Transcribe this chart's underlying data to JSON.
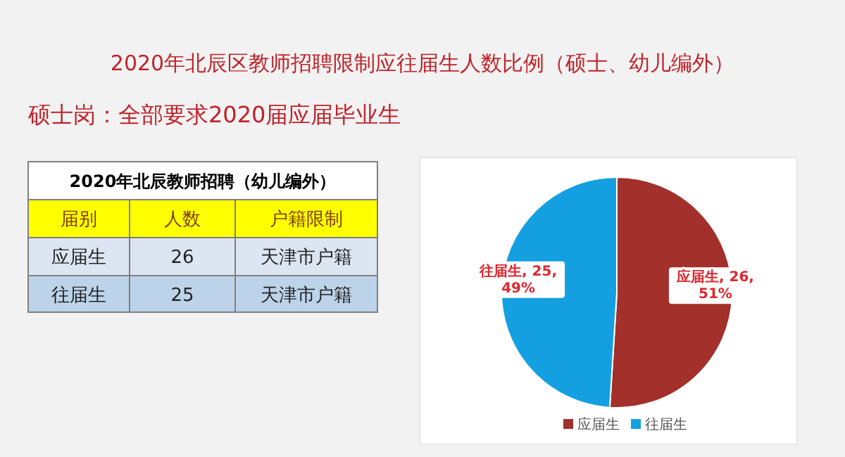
{
  "chart_data": {
    "type": "pie",
    "title": "2020年北辰区教师招聘限制应往届生人数比例（硕士、幼儿编外）",
    "subtitle": "硕士岗：全部要求2020届应届毕业生",
    "categories": [
      "应届生",
      "往届生"
    ],
    "values": [
      26,
      25
    ],
    "colors": [
      "#a3302b",
      "#14a0e0"
    ],
    "value_labels": [
      "应届生, 26, 51%",
      "往届生, 25, 49%"
    ],
    "legend": "bottom",
    "annotations": [
      "2020年北辰教师招聘（幼儿编外）",
      "届别",
      "人数",
      "户籍限制",
      "应届生",
      "26",
      "天津市户籍",
      "往届生",
      "25",
      "天津市户籍"
    ]
  }
}
